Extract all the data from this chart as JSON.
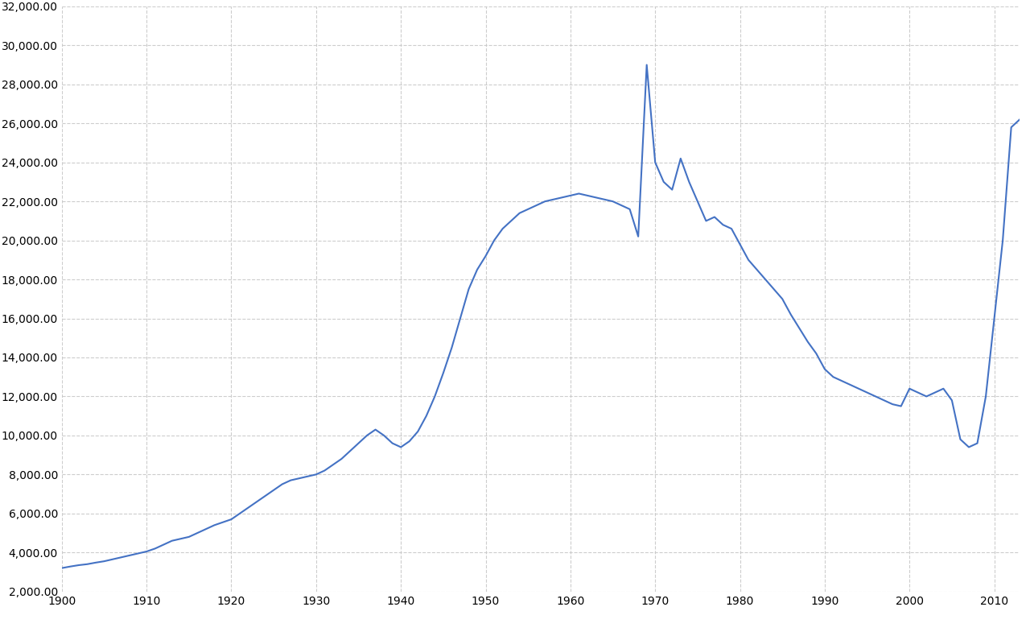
{
  "background_color": "#ffffff",
  "line_color": "#4472c4",
  "line_width": 1.5,
  "grid_color": "#c8c8c8",
  "grid_style": "--",
  "xlim": [
    1900,
    2013
  ],
  "ylim": [
    2000,
    32000
  ],
  "ytick_step": 2000,
  "xticks": [
    1900,
    1910,
    1920,
    1930,
    1940,
    1950,
    1960,
    1970,
    1980,
    1990,
    2000,
    2010
  ],
  "data": [
    [
      1900,
      3200
    ],
    [
      1901,
      3280
    ],
    [
      1902,
      3350
    ],
    [
      1903,
      3400
    ],
    [
      1904,
      3480
    ],
    [
      1905,
      3550
    ],
    [
      1906,
      3650
    ],
    [
      1907,
      3750
    ],
    [
      1908,
      3850
    ],
    [
      1909,
      3950
    ],
    [
      1910,
      4050
    ],
    [
      1911,
      4200
    ],
    [
      1912,
      4400
    ],
    [
      1913,
      4600
    ],
    [
      1914,
      4700
    ],
    [
      1915,
      4800
    ],
    [
      1916,
      5000
    ],
    [
      1917,
      5200
    ],
    [
      1918,
      5400
    ],
    [
      1919,
      5550
    ],
    [
      1920,
      5700
    ],
    [
      1921,
      6000
    ],
    [
      1922,
      6300
    ],
    [
      1923,
      6600
    ],
    [
      1924,
      6900
    ],
    [
      1925,
      7200
    ],
    [
      1926,
      7500
    ],
    [
      1927,
      7700
    ],
    [
      1928,
      7800
    ],
    [
      1929,
      7900
    ],
    [
      1930,
      8000
    ],
    [
      1931,
      8200
    ],
    [
      1932,
      8500
    ],
    [
      1933,
      8800
    ],
    [
      1934,
      9200
    ],
    [
      1935,
      9600
    ],
    [
      1936,
      10000
    ],
    [
      1937,
      10300
    ],
    [
      1938,
      10000
    ],
    [
      1939,
      9600
    ],
    [
      1940,
      9400
    ],
    [
      1941,
      9700
    ],
    [
      1942,
      10200
    ],
    [
      1943,
      11000
    ],
    [
      1944,
      12000
    ],
    [
      1945,
      13200
    ],
    [
      1946,
      14500
    ],
    [
      1947,
      16000
    ],
    [
      1948,
      17500
    ],
    [
      1949,
      18500
    ],
    [
      1950,
      19200
    ],
    [
      1951,
      20000
    ],
    [
      1952,
      20600
    ],
    [
      1953,
      21000
    ],
    [
      1954,
      21400
    ],
    [
      1955,
      21600
    ],
    [
      1956,
      21800
    ],
    [
      1957,
      22000
    ],
    [
      1958,
      22100
    ],
    [
      1959,
      22200
    ],
    [
      1960,
      22300
    ],
    [
      1961,
      22400
    ],
    [
      1962,
      22300
    ],
    [
      1963,
      22200
    ],
    [
      1964,
      22100
    ],
    [
      1965,
      22000
    ],
    [
      1966,
      21800
    ],
    [
      1967,
      21600
    ],
    [
      1968,
      20200
    ],
    [
      1969,
      29000
    ],
    [
      1970,
      24000
    ],
    [
      1971,
      23000
    ],
    [
      1972,
      22600
    ],
    [
      1973,
      24200
    ],
    [
      1974,
      23000
    ],
    [
      1975,
      22000
    ],
    [
      1976,
      21000
    ],
    [
      1977,
      21200
    ],
    [
      1978,
      20800
    ],
    [
      1979,
      20600
    ],
    [
      1980,
      19800
    ],
    [
      1981,
      19000
    ],
    [
      1982,
      18500
    ],
    [
      1983,
      18000
    ],
    [
      1984,
      17500
    ],
    [
      1985,
      17000
    ],
    [
      1986,
      16200
    ],
    [
      1987,
      15500
    ],
    [
      1988,
      14800
    ],
    [
      1989,
      14200
    ],
    [
      1990,
      13400
    ],
    [
      1991,
      13000
    ],
    [
      1992,
      12800
    ],
    [
      1993,
      12600
    ],
    [
      1994,
      12400
    ],
    [
      1995,
      12200
    ],
    [
      1996,
      12000
    ],
    [
      1997,
      11800
    ],
    [
      1998,
      11600
    ],
    [
      1999,
      11500
    ],
    [
      2000,
      12400
    ],
    [
      2001,
      12200
    ],
    [
      2002,
      12000
    ],
    [
      2003,
      12200
    ],
    [
      2004,
      12400
    ],
    [
      2005,
      11800
    ],
    [
      2006,
      9800
    ],
    [
      2007,
      9400
    ],
    [
      2008,
      9600
    ],
    [
      2009,
      12000
    ],
    [
      2010,
      16000
    ],
    [
      2011,
      20000
    ],
    [
      2012,
      25800
    ],
    [
      2013,
      26200
    ]
  ]
}
